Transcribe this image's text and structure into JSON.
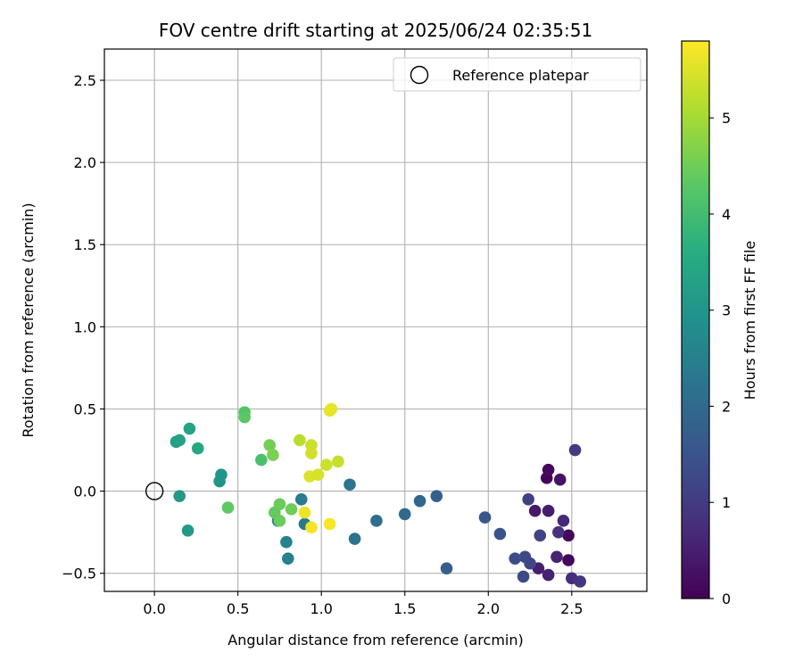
{
  "chart_data": {
    "type": "scatter",
    "title": "FOV centre drift starting at 2025/06/24 02:35:51",
    "xlabel": "Angular distance from reference (arcmin)",
    "ylabel": "Rotation from reference (arcmin)",
    "xlim": [
      -0.3,
      2.95
    ],
    "ylim": [
      -0.61,
      2.69
    ],
    "xticks": [
      0.0,
      0.5,
      1.0,
      1.5,
      2.0,
      2.5
    ],
    "xtick_labels": [
      "0.0",
      "0.5",
      "1.0",
      "1.5",
      "2.0",
      "2.5"
    ],
    "yticks": [
      -0.5,
      0.0,
      0.5,
      1.0,
      1.5,
      2.0,
      2.5
    ],
    "ytick_labels": [
      "−0.5",
      "0.0",
      "0.5",
      "1.0",
      "1.5",
      "2.0",
      "2.5"
    ],
    "grid": true,
    "legend": {
      "placement": "top-right",
      "entries": [
        "Reference platepar"
      ]
    },
    "reference_point": {
      "x": 0.0,
      "y": 0.0
    },
    "colorbar": {
      "label": "Hours from first FF file",
      "colormap": "viridis",
      "range": [
        0,
        5.8
      ],
      "ticks": [
        0,
        1,
        2,
        3,
        4,
        5
      ],
      "tick_labels": [
        "0",
        "1",
        "2",
        "3",
        "4",
        "5"
      ]
    },
    "points": [
      {
        "x": 2.35,
        "y": 0.08,
        "c": 0.05
      },
      {
        "x": 2.36,
        "y": 0.13,
        "c": 0.15
      },
      {
        "x": 2.48,
        "y": -0.27,
        "c": 0.1
      },
      {
        "x": 2.48,
        "y": -0.42,
        "c": 0.1
      },
      {
        "x": 2.43,
        "y": 0.07,
        "c": 0.3
      },
      {
        "x": 2.28,
        "y": -0.12,
        "c": 0.4
      },
      {
        "x": 2.36,
        "y": -0.12,
        "c": 0.45
      },
      {
        "x": 2.3,
        "y": -0.47,
        "c": 0.5
      },
      {
        "x": 2.36,
        "y": -0.51,
        "c": 0.55
      },
      {
        "x": 2.41,
        "y": -0.4,
        "c": 0.6
      },
      {
        "x": 2.45,
        "y": -0.18,
        "c": 0.7
      },
      {
        "x": 2.5,
        "y": -0.53,
        "c": 0.75
      },
      {
        "x": 2.42,
        "y": -0.25,
        "c": 0.85
      },
      {
        "x": 2.55,
        "y": -0.55,
        "c": 0.9
      },
      {
        "x": 2.52,
        "y": 0.25,
        "c": 1.0
      },
      {
        "x": 2.24,
        "y": -0.05,
        "c": 1.1
      },
      {
        "x": 2.31,
        "y": -0.27,
        "c": 1.15
      },
      {
        "x": 2.25,
        "y": -0.44,
        "c": 1.2
      },
      {
        "x": 2.22,
        "y": -0.4,
        "c": 1.25
      },
      {
        "x": 2.21,
        "y": -0.52,
        "c": 1.3
      },
      {
        "x": 2.16,
        "y": -0.41,
        "c": 1.35
      },
      {
        "x": 2.07,
        "y": -0.26,
        "c": 1.5
      },
      {
        "x": 1.98,
        "y": -0.16,
        "c": 1.55
      },
      {
        "x": 1.75,
        "y": -0.47,
        "c": 1.7
      },
      {
        "x": 1.69,
        "y": -0.03,
        "c": 1.8
      },
      {
        "x": 1.59,
        "y": -0.06,
        "c": 1.9
      },
      {
        "x": 1.5,
        "y": -0.14,
        "c": 1.95
      },
      {
        "x": 1.33,
        "y": -0.18,
        "c": 2.1
      },
      {
        "x": 1.2,
        "y": -0.29,
        "c": 2.2
      },
      {
        "x": 1.17,
        "y": 0.04,
        "c": 2.25
      },
      {
        "x": 0.9,
        "y": -0.2,
        "c": 2.35
      },
      {
        "x": 0.88,
        "y": -0.05,
        "c": 2.4
      },
      {
        "x": 0.8,
        "y": -0.41,
        "c": 2.5
      },
      {
        "x": 0.79,
        "y": -0.31,
        "c": 2.55
      },
      {
        "x": 0.74,
        "y": -0.18,
        "c": 2.6
      },
      {
        "x": 0.4,
        "y": 0.1,
        "c": 3.0
      },
      {
        "x": 0.39,
        "y": 0.06,
        "c": 3.0
      },
      {
        "x": 0.15,
        "y": -0.03,
        "c": 3.1
      },
      {
        "x": 0.2,
        "y": -0.24,
        "c": 3.1
      },
      {
        "x": 0.13,
        "y": 0.3,
        "c": 3.25
      },
      {
        "x": 0.15,
        "y": 0.31,
        "c": 3.3
      },
      {
        "x": 0.21,
        "y": 0.38,
        "c": 3.35
      },
      {
        "x": 0.26,
        "y": 0.26,
        "c": 3.45
      },
      {
        "x": 0.64,
        "y": 0.19,
        "c": 4.1
      },
      {
        "x": 0.54,
        "y": 0.48,
        "c": 4.2
      },
      {
        "x": 0.54,
        "y": 0.45,
        "c": 4.3
      },
      {
        "x": 0.44,
        "y": -0.1,
        "c": 4.35
      },
      {
        "x": 0.72,
        "y": -0.13,
        "c": 4.4
      },
      {
        "x": 0.75,
        "y": -0.08,
        "c": 4.45
      },
      {
        "x": 0.75,
        "y": -0.18,
        "c": 4.45
      },
      {
        "x": 0.82,
        "y": -0.11,
        "c": 4.5
      },
      {
        "x": 0.69,
        "y": 0.28,
        "c": 4.55
      },
      {
        "x": 0.71,
        "y": 0.22,
        "c": 4.6
      },
      {
        "x": 0.87,
        "y": 0.31,
        "c": 5.2
      },
      {
        "x": 0.94,
        "y": 0.28,
        "c": 5.35
      },
      {
        "x": 0.94,
        "y": 0.23,
        "c": 5.4
      },
      {
        "x": 0.93,
        "y": 0.09,
        "c": 5.5
      },
      {
        "x": 0.98,
        "y": 0.1,
        "c": 5.45
      },
      {
        "x": 1.03,
        "y": 0.16,
        "c": 5.35
      },
      {
        "x": 1.1,
        "y": 0.18,
        "c": 5.3
      },
      {
        "x": 1.05,
        "y": 0.49,
        "c": 5.6
      },
      {
        "x": 1.06,
        "y": 0.5,
        "c": 5.6
      },
      {
        "x": 0.9,
        "y": -0.13,
        "c": 5.65
      },
      {
        "x": 0.94,
        "y": -0.22,
        "c": 5.7
      },
      {
        "x": 1.05,
        "y": -0.2,
        "c": 5.75
      }
    ]
  }
}
